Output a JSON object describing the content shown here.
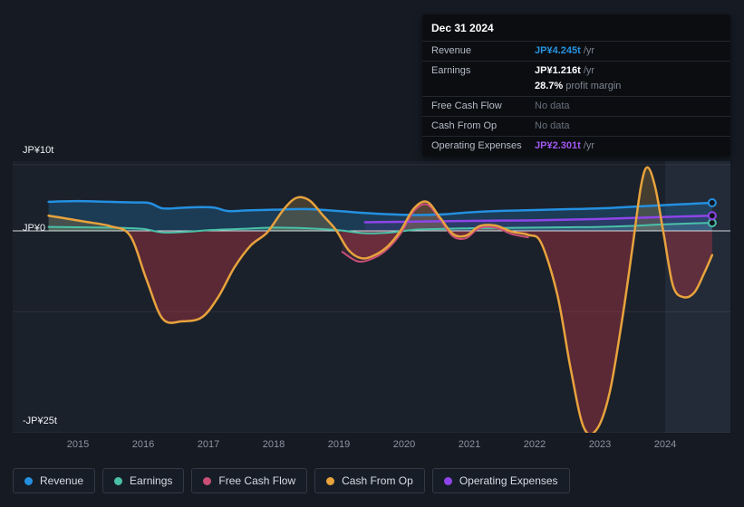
{
  "tooltip": {
    "date": "Dec 31 2024",
    "rows": [
      {
        "label": "Revenue",
        "value": "JP¥4.245t",
        "suffix": " /yr",
        "value_color": "#2693e0"
      },
      {
        "label": "Earnings",
        "value": "JP¥1.216t",
        "suffix": " /yr",
        "value_color": "#ffffff",
        "sub_value": "28.7%",
        "sub_suffix": " profit margin"
      },
      {
        "label": "Free Cash Flow",
        "value": "No data",
        "value_color": "#68707c"
      },
      {
        "label": "Cash From Op",
        "value": "No data",
        "value_color": "#68707c"
      },
      {
        "label": "Operating Expenses",
        "value": "JP¥2.301t",
        "suffix": " /yr",
        "value_color": "#a158f0"
      }
    ]
  },
  "chart": {
    "y_labels": {
      "top": "JP¥10t",
      "zero": "JP¥0",
      "bottom": "-JP¥25t"
    }
  },
  "legend": {
    "items": [
      {
        "label": "Revenue",
        "color": "#2490e0"
      },
      {
        "label": "Earnings",
        "color": "#4ac0a8"
      },
      {
        "label": "Free Cash Flow",
        "color": "#c94f77"
      },
      {
        "label": "Cash From Op",
        "color": "#e8a33d"
      },
      {
        "label": "Operating Expenses",
        "color": "#8e45e8"
      }
    ]
  },
  "chart_data": {
    "type": "area",
    "title": "Earnings and revenue history (JP¥ trillions)",
    "x_domain": [
      2014,
      2025
    ],
    "y_domain": [
      -25,
      10
    ],
    "y_gridlines": [
      10,
      0,
      -10,
      -25
    ],
    "x_ticks": [
      "2015",
      "2016",
      "2017",
      "2018",
      "2019",
      "2020",
      "2021",
      "2022",
      "2023",
      "2024"
    ],
    "highlight_from": 2024,
    "series": [
      {
        "name": "Revenue",
        "color": "#2490e0",
        "width": 2.5,
        "end_marker": true,
        "fill_pos": "rgba(33,118,183,0.30)",
        "fill_neg": "rgba(0,0,0,0)",
        "points": [
          [
            2014.55,
            4.4
          ],
          [
            2015.0,
            4.5
          ],
          [
            2015.45,
            4.4
          ],
          [
            2015.85,
            4.3
          ],
          [
            2016.1,
            4.2
          ],
          [
            2016.3,
            3.4
          ],
          [
            2016.6,
            3.5
          ],
          [
            2016.9,
            3.6
          ],
          [
            2017.1,
            3.5
          ],
          [
            2017.3,
            3.0
          ],
          [
            2017.6,
            3.1
          ],
          [
            2018.0,
            3.2
          ],
          [
            2018.5,
            3.3
          ],
          [
            2019.0,
            3.0
          ],
          [
            2019.4,
            2.7
          ],
          [
            2019.8,
            2.5
          ],
          [
            2020.2,
            2.4
          ],
          [
            2020.6,
            2.5
          ],
          [
            2021.0,
            2.8
          ],
          [
            2021.4,
            3.0
          ],
          [
            2021.8,
            3.1
          ],
          [
            2022.2,
            3.2
          ],
          [
            2022.6,
            3.3
          ],
          [
            2023.0,
            3.4
          ],
          [
            2023.4,
            3.6
          ],
          [
            2023.8,
            3.8
          ],
          [
            2024.2,
            4.0
          ],
          [
            2024.72,
            4.245
          ]
        ]
      },
      {
        "name": "Earnings",
        "color": "#4ac0a8",
        "width": 2,
        "end_marker": true,
        "fill_pos": "rgba(74,192,168,0.25)",
        "fill_neg": "rgba(74,192,168,0.22)",
        "points": [
          [
            2014.55,
            0.6
          ],
          [
            2015.0,
            0.55
          ],
          [
            2015.5,
            0.5
          ],
          [
            2016.0,
            0.3
          ],
          [
            2016.3,
            -0.2
          ],
          [
            2016.7,
            -0.1
          ],
          [
            2017.0,
            0.1
          ],
          [
            2017.5,
            0.3
          ],
          [
            2018.0,
            0.5
          ],
          [
            2018.5,
            0.4
          ],
          [
            2019.0,
            0.1
          ],
          [
            2019.4,
            -0.3
          ],
          [
            2019.8,
            -0.2
          ],
          [
            2020.2,
            0.2
          ],
          [
            2020.6,
            0.3
          ],
          [
            2021.0,
            0.4
          ],
          [
            2021.5,
            0.45
          ],
          [
            2022.0,
            0.5
          ],
          [
            2022.5,
            0.55
          ],
          [
            2023.0,
            0.6
          ],
          [
            2023.5,
            0.75
          ],
          [
            2024.0,
            1.0
          ],
          [
            2024.72,
            1.216
          ]
        ]
      },
      {
        "name": "Free Cash Flow",
        "color": "#c94f77",
        "width": 2,
        "end_marker": false,
        "fill_pos": "rgba(201,79,119,0.15)",
        "fill_neg": "rgba(201,79,119,0.15)",
        "points": [
          [
            2019.05,
            -2.6
          ],
          [
            2019.3,
            -3.8
          ],
          [
            2019.55,
            -3.3
          ],
          [
            2019.75,
            -2.2
          ],
          [
            2019.95,
            -0.3
          ],
          [
            2020.15,
            3.0
          ],
          [
            2020.35,
            4.0
          ],
          [
            2020.55,
            1.7
          ],
          [
            2020.75,
            -0.7
          ],
          [
            2020.95,
            -0.9
          ],
          [
            2021.15,
            0.4
          ],
          [
            2021.4,
            0.5
          ],
          [
            2021.65,
            -0.4
          ],
          [
            2021.9,
            -0.8
          ]
        ]
      },
      {
        "name": "Operating Expenses",
        "color": "#8e45e8",
        "width": 2.5,
        "end_marker": true,
        "fill_pos": "rgba(142,69,232,0.12)",
        "fill_neg": "rgba(142,69,232,0.12)",
        "points": [
          [
            2019.4,
            1.3
          ],
          [
            2019.8,
            1.35
          ],
          [
            2020.2,
            1.4
          ],
          [
            2020.6,
            1.45
          ],
          [
            2021.0,
            1.5
          ],
          [
            2021.5,
            1.55
          ],
          [
            2022.0,
            1.6
          ],
          [
            2022.5,
            1.7
          ],
          [
            2023.0,
            1.8
          ],
          [
            2023.5,
            1.95
          ],
          [
            2024.0,
            2.1
          ],
          [
            2024.72,
            2.301
          ]
        ]
      },
      {
        "name": "Cash From Op",
        "color": "#e8a33d",
        "width": 2.5,
        "end_marker": false,
        "fill_pos": "rgba(180,140,60,0.28)",
        "fill_neg": "rgba(198,54,70,0.38)",
        "points": [
          [
            2014.55,
            2.3
          ],
          [
            2014.8,
            1.9
          ],
          [
            2015.1,
            1.4
          ],
          [
            2015.5,
            0.7
          ],
          [
            2015.8,
            -0.6
          ],
          [
            2016.05,
            -6.0
          ],
          [
            2016.3,
            -10.9
          ],
          [
            2016.6,
            -11.2
          ],
          [
            2016.9,
            -10.7
          ],
          [
            2017.15,
            -8.2
          ],
          [
            2017.4,
            -4.5
          ],
          [
            2017.65,
            -1.8
          ],
          [
            2017.9,
            -0.2
          ],
          [
            2018.15,
            3.2
          ],
          [
            2018.35,
            5.0
          ],
          [
            2018.55,
            4.6
          ],
          [
            2018.75,
            2.4
          ],
          [
            2018.95,
            0.2
          ],
          [
            2019.15,
            -2.4
          ],
          [
            2019.35,
            -3.4
          ],
          [
            2019.55,
            -3.0
          ],
          [
            2019.75,
            -1.9
          ],
          [
            2019.95,
            0.1
          ],
          [
            2020.15,
            3.4
          ],
          [
            2020.35,
            4.4
          ],
          [
            2020.55,
            2.0
          ],
          [
            2020.75,
            -0.4
          ],
          [
            2020.95,
            -0.6
          ],
          [
            2021.15,
            0.7
          ],
          [
            2021.4,
            0.8
          ],
          [
            2021.65,
            -0.1
          ],
          [
            2021.9,
            -0.5
          ],
          [
            2022.1,
            -1.5
          ],
          [
            2022.35,
            -8.0
          ],
          [
            2022.55,
            -17.0
          ],
          [
            2022.75,
            -24.3
          ],
          [
            2022.95,
            -24.6
          ],
          [
            2023.15,
            -20.0
          ],
          [
            2023.35,
            -10.5
          ],
          [
            2023.5,
            -2.0
          ],
          [
            2023.63,
            6.8
          ],
          [
            2023.73,
            9.6
          ],
          [
            2023.85,
            6.5
          ],
          [
            2023.98,
            -0.5
          ],
          [
            2024.12,
            -6.8
          ],
          [
            2024.28,
            -8.2
          ],
          [
            2024.45,
            -7.6
          ],
          [
            2024.6,
            -5.2
          ],
          [
            2024.72,
            -3.0
          ]
        ]
      }
    ]
  }
}
